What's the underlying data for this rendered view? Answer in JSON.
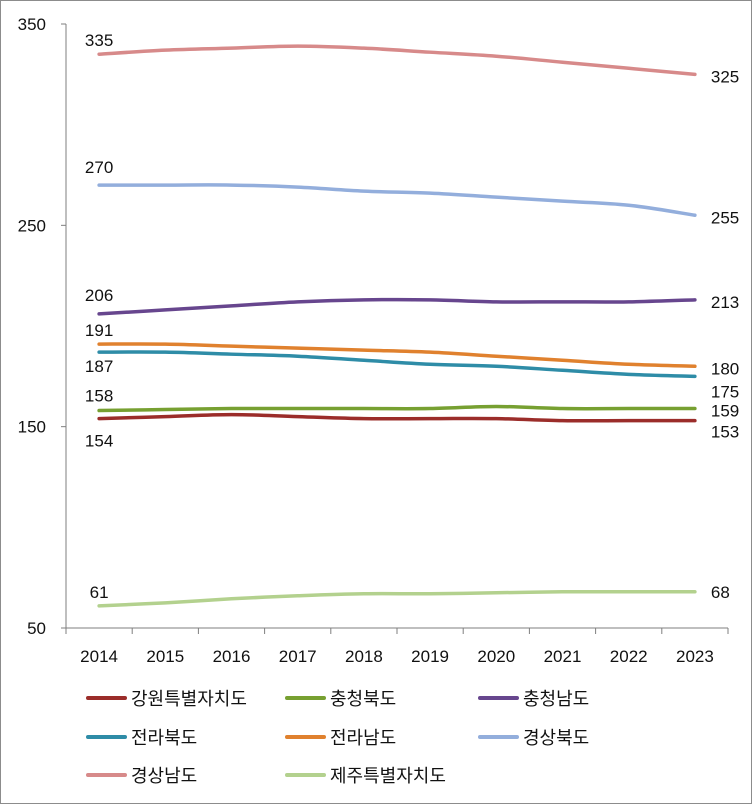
{
  "chart_data": {
    "type": "line",
    "title": "",
    "xlabel": "",
    "ylabel": "",
    "categories": [
      "2014",
      "2015",
      "2016",
      "2017",
      "2018",
      "2019",
      "2020",
      "2021",
      "2022",
      "2023"
    ],
    "ylim": [
      50,
      350
    ],
    "yticks": [
      50,
      150,
      250,
      350
    ],
    "grid": false,
    "legend_position": "bottom",
    "series": [
      {
        "name": "강원특별자치도",
        "color": "#9b2d2a",
        "values": [
          154,
          155,
          156,
          155,
          154,
          154,
          154,
          153,
          153,
          153
        ],
        "label_first": "154",
        "label_last": "153"
      },
      {
        "name": "충청북도",
        "color": "#77a031",
        "values": [
          158,
          158.5,
          159,
          159,
          159,
          159,
          160,
          159,
          159,
          159
        ],
        "label_first": "158",
        "label_last": "159"
      },
      {
        "name": "충청남도",
        "color": "#67468e",
        "values": [
          206,
          208,
          210,
          212,
          213,
          213,
          212,
          212,
          212,
          213
        ],
        "label_first": "206",
        "label_last": "213"
      },
      {
        "name": "전라북도",
        "color": "#2e8ca7",
        "values": [
          187,
          187,
          186,
          185,
          183,
          181,
          180,
          178,
          176,
          175
        ],
        "label_first": "187",
        "label_last": "175"
      },
      {
        "name": "전라남도",
        "color": "#e0812e",
        "values": [
          191,
          191,
          190,
          189,
          188,
          187,
          185,
          183,
          181,
          180
        ],
        "label_first": "191",
        "label_last": "180"
      },
      {
        "name": "경상북도",
        "color": "#93aedc",
        "values": [
          270,
          270,
          270,
          269,
          267,
          266,
          264,
          262,
          260,
          255
        ],
        "label_first": "270",
        "label_last": "255"
      },
      {
        "name": "경상남도",
        "color": "#d78a8a",
        "values": [
          335,
          337,
          338,
          339,
          338,
          336,
          334,
          331,
          328,
          325
        ],
        "label_first": "335",
        "label_last": "325"
      },
      {
        "name": "제주특별자치도",
        "color": "#b3d18e",
        "values": [
          61,
          62.5,
          64.5,
          66,
          67,
          67,
          67.5,
          68,
          68,
          68
        ],
        "label_first": "61",
        "label_last": "68"
      }
    ]
  }
}
